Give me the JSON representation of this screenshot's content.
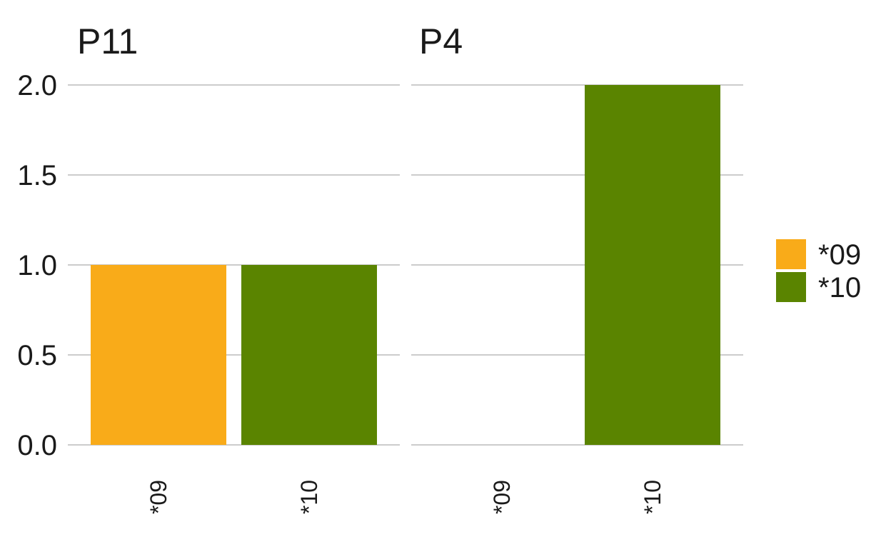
{
  "chart_data": {
    "type": "bar",
    "facets": [
      {
        "title": "P11",
        "categories": [
          "*09",
          "*10"
        ],
        "values": [
          1.0,
          1.0
        ]
      },
      {
        "title": "P4",
        "categories": [
          "*09",
          "*10"
        ],
        "values": [
          0,
          2.0
        ]
      }
    ],
    "y_ticks": [
      "0.0",
      "0.5",
      "1.0",
      "1.5",
      "2.0"
    ],
    "ylim": [
      0,
      2
    ],
    "grid": true,
    "legend": {
      "position": "right",
      "entries": [
        {
          "label": "*09",
          "color": "#F9AB19"
        },
        {
          "label": "*10",
          "color": "#5A8400"
        }
      ]
    },
    "colors": {
      "*09": "#F9AB19",
      "*10": "#5A8400"
    }
  }
}
